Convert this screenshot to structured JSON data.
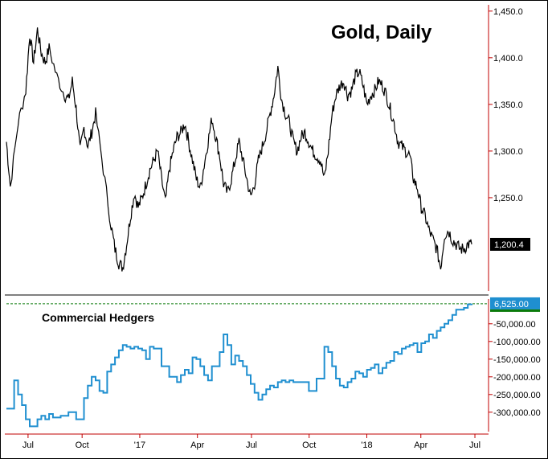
{
  "chart_data": [
    {
      "type": "line",
      "title": "Gold, Daily",
      "ylim": [
        1150,
        1455
      ],
      "yticks": [
        "1,450.0",
        "1,400.0",
        "1,350.0",
        "1,300.0",
        "1,250.0"
      ],
      "last_value_label": "1,200.4",
      "series": [
        {
          "color": "#000000",
          "x": [
            0,
            1,
            3,
            5,
            6,
            7,
            8,
            9,
            10,
            11,
            13,
            15,
            16,
            17,
            18,
            19,
            20,
            21,
            22,
            23,
            25,
            27,
            28,
            29,
            30,
            31,
            32,
            33,
            34,
            35,
            36,
            37,
            38,
            39,
            40,
            41,
            42,
            43,
            44,
            45,
            46,
            47,
            48,
            49,
            50,
            51,
            52,
            53,
            54,
            55,
            56,
            57,
            58,
            59,
            60,
            61,
            62,
            63,
            64,
            65,
            66,
            67,
            68,
            69,
            70,
            71,
            72,
            73,
            74,
            75,
            76,
            77,
            78,
            79,
            80,
            81,
            82,
            83,
            84,
            85,
            86,
            87,
            88,
            89,
            90,
            91,
            92,
            93,
            94,
            95,
            96,
            97,
            98,
            99,
            100,
            101,
            102,
            103,
            104,
            105,
            106,
            107,
            108,
            109,
            110,
            111,
            112,
            113,
            114,
            115,
            116,
            117,
            118,
            119,
            120
          ],
          "values": [
            1310,
            1262,
            1330,
            1365,
            1425,
            1395,
            1430,
            1405,
            1395,
            1410,
            1380,
            1360,
            1355,
            1375,
            1345,
            1300,
            1325,
            1305,
            1320,
            1340,
            1280,
            1220,
            1195,
            1180,
            1175,
            1200,
            1230,
            1255,
            1240,
            1250,
            1265,
            1280,
            1290,
            1300,
            1270,
            1245,
            1280,
            1300,
            1315,
            1320,
            1330,
            1310,
            1290,
            1270,
            1260,
            1285,
            1310,
            1335,
            1315,
            1295,
            1265,
            1255,
            1270,
            1290,
            1310,
            1290,
            1270,
            1250,
            1265,
            1290,
            1305,
            1320,
            1340,
            1360,
            1390,
            1355,
            1340,
            1330,
            1310,
            1300,
            1315,
            1320,
            1310,
            1300,
            1295,
            1290,
            1270,
            1300,
            1340,
            1360,
            1370,
            1375,
            1360,
            1365,
            1380,
            1385,
            1370,
            1350,
            1360,
            1365,
            1375,
            1370,
            1360,
            1345,
            1330,
            1310,
            1305,
            1300,
            1295,
            1270,
            1260,
            1240,
            1230,
            1215,
            1205,
            1195,
            1175,
            1210,
            1215,
            1205,
            1200,
            1195,
            1195,
            1200,
            1200
          ]
        }
      ]
    },
    {
      "type": "line",
      "title": "Commercial Hedgers",
      "ylim": [
        -355000,
        20000
      ],
      "yticks": [
        "-50,000.00",
        "-100,000.00",
        "-150,000.00",
        "-200,000.00",
        "-250,000.00",
        "-300,000.00"
      ],
      "last_value_label": "6,525.00",
      "series": [
        {
          "color": "#1f8fd0",
          "x": [
            0,
            2,
            3,
            4,
            5,
            6,
            8,
            9,
            10,
            11,
            12,
            14,
            16,
            18,
            20,
            21,
            22,
            23,
            24,
            25,
            26,
            27,
            28,
            29,
            30,
            31,
            32,
            33,
            34,
            35,
            36,
            37,
            38,
            40,
            42,
            44,
            45,
            46,
            47,
            48,
            49,
            50,
            51,
            52,
            53,
            55,
            56,
            57,
            58,
            59,
            60,
            61,
            62,
            63,
            64,
            65,
            66,
            67,
            68,
            69,
            70,
            71,
            72,
            73,
            74,
            76,
            78,
            80,
            82,
            83,
            84,
            85,
            86,
            87,
            88,
            89,
            90,
            91,
            92,
            93,
            94,
            95,
            96,
            97,
            98,
            99,
            100,
            101,
            102,
            103,
            104,
            105,
            106,
            107,
            108,
            109,
            110,
            111,
            112,
            113,
            114,
            115,
            116,
            117,
            118,
            119,
            120
          ],
          "values": [
            -290000,
            -210000,
            -250000,
            -280000,
            -320000,
            -340000,
            -320000,
            -310000,
            -320000,
            -305000,
            -315000,
            -310000,
            -300000,
            -320000,
            -260000,
            -225000,
            -200000,
            -210000,
            -240000,
            -245000,
            -185000,
            -165000,
            -145000,
            -125000,
            -110000,
            -115000,
            -120000,
            -115000,
            -120000,
            -125000,
            -150000,
            -115000,
            -120000,
            -170000,
            -200000,
            -215000,
            -195000,
            -180000,
            -190000,
            -145000,
            -150000,
            -170000,
            -195000,
            -210000,
            -170000,
            -130000,
            -80000,
            -110000,
            -165000,
            -140000,
            -155000,
            -170000,
            -195000,
            -220000,
            -245000,
            -265000,
            -250000,
            -235000,
            -225000,
            -230000,
            -215000,
            -210000,
            -215000,
            -210000,
            -215000,
            -215000,
            -240000,
            -205000,
            -115000,
            -130000,
            -170000,
            -205000,
            -225000,
            -230000,
            -215000,
            -205000,
            -185000,
            -190000,
            -200000,
            -180000,
            -175000,
            -165000,
            -190000,
            -175000,
            -160000,
            -155000,
            -130000,
            -135000,
            -120000,
            -115000,
            -110000,
            -105000,
            -130000,
            -105000,
            -100000,
            -80000,
            -90000,
            -70000,
            -60000,
            -50000,
            -40000,
            -25000,
            -10000,
            -10000,
            -5000,
            5000,
            6525
          ]
        }
      ]
    }
  ],
  "x_axis": {
    "labels": [
      "Jul",
      "Oct",
      "'17",
      "Apr",
      "Jul",
      "Oct",
      "'18",
      "Apr",
      "Jul"
    ],
    "positions": [
      6,
      21,
      37,
      53,
      68,
      84,
      100,
      115,
      130
    ]
  },
  "reference_line": {
    "value": 6525,
    "color": "#0a7a0a"
  },
  "colors": {
    "axis": "#c00000",
    "price": "#000000",
    "hedgers": "#1f8fd0",
    "price_label_bg": "#000000",
    "hedgers_label_bg": "#1f8fd0",
    "hedgers_label_underline": "#0a7a0a"
  }
}
